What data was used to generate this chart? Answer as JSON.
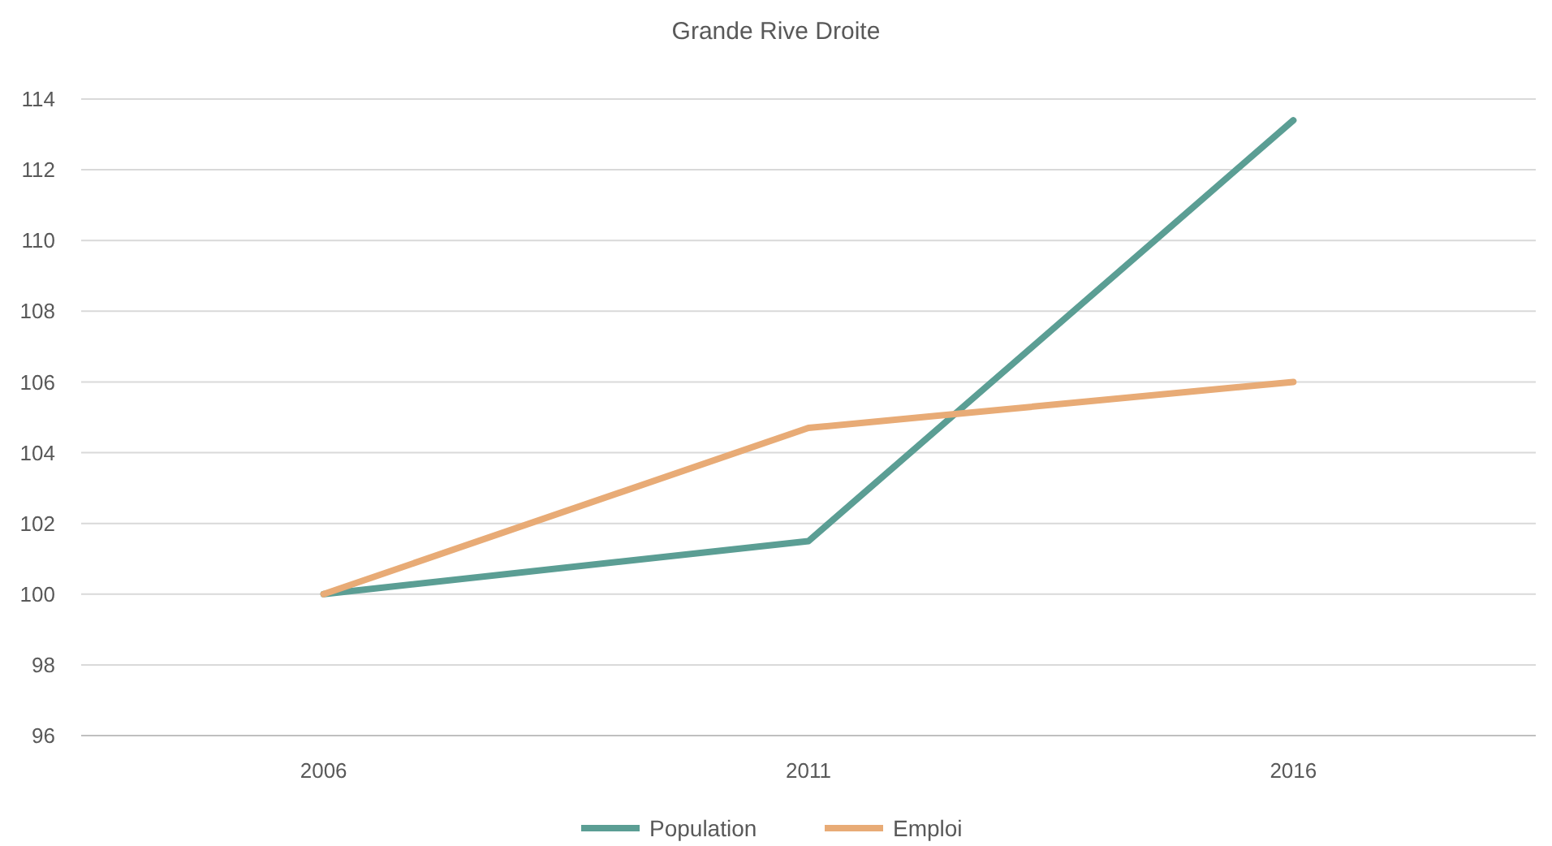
{
  "chart_data": {
    "type": "line",
    "title": "Grande Rive Droite",
    "categories": [
      "2006",
      "2011",
      "2016"
    ],
    "series": [
      {
        "name": "Population",
        "color": "#5b9e94",
        "values": [
          100,
          101.5,
          113.4
        ]
      },
      {
        "name": "Emploi",
        "color": "#e8ab76",
        "values": [
          100,
          104.7,
          106
        ]
      }
    ],
    "ylim": [
      96,
      114
    ],
    "yticks": [
      96,
      98,
      100,
      102,
      104,
      106,
      108,
      110,
      112,
      114
    ],
    "grid": "y",
    "legend": "bottom",
    "marker": "none",
    "line_style": "solid"
  }
}
